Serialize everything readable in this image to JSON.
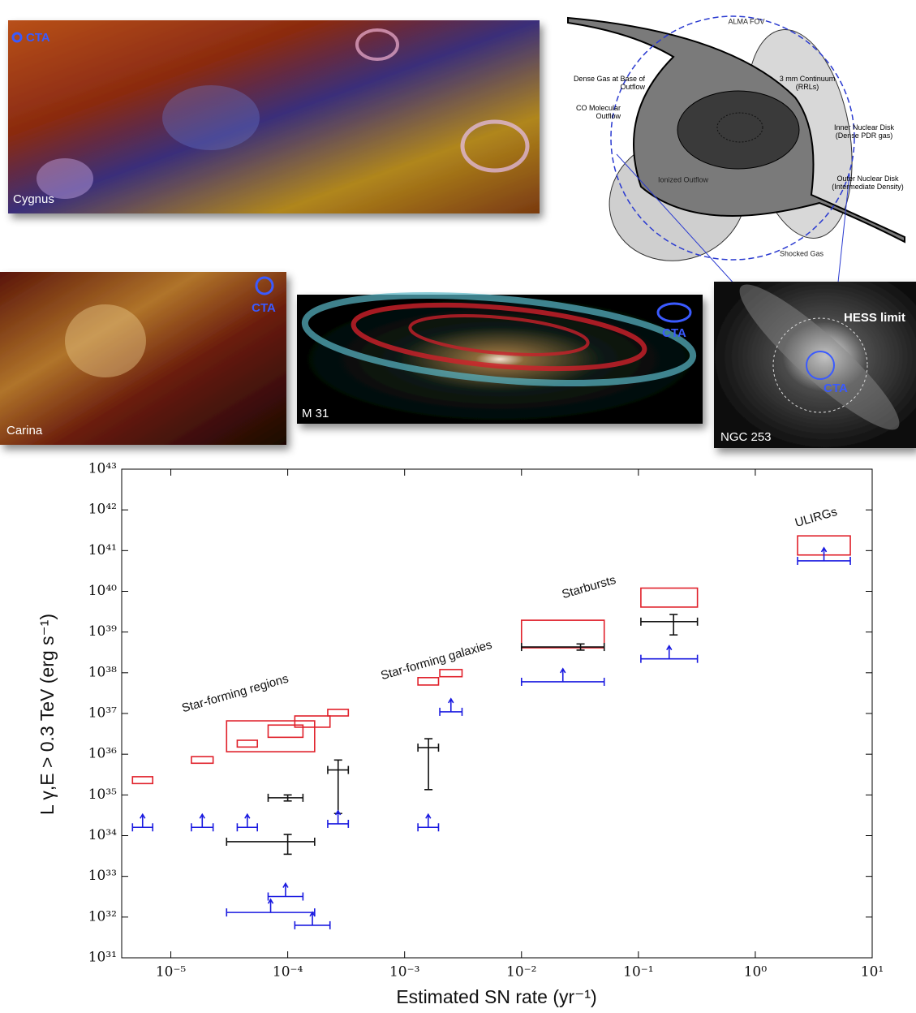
{
  "panels": {
    "cygnus": {
      "label": "Cygnus",
      "beam": "CTA"
    },
    "carina": {
      "label": "Carina",
      "beam": "CTA"
    },
    "m31": {
      "label": "M 31",
      "beam": "CTA"
    },
    "ngc253": {
      "label": "NGC 253",
      "beam": "CTA",
      "limit": "HESS limit"
    },
    "diagram": {
      "fov": "ALMA FOV",
      "dense_gas": "Dense Gas at Base of Outflow",
      "continuum": "3 mm Continuum (RRLs)",
      "co_outflow": "CO Molecular Outflow",
      "inner_disk": "Inner Nuclear Disk (Dense PDR gas)",
      "ionized": "Ionized Outflow",
      "outer_disk": "Outer Nuclear Disk (Intermediate Density)",
      "shocked": "Shocked Gas"
    }
  },
  "chart_data": {
    "type": "errorbar",
    "x_label": "Estimated SN rate (yr⁻¹)",
    "y_label": "L γ,E > 0.3 TeV (erg s⁻¹)",
    "log_x": true,
    "log_y": true,
    "xlim": [
      3.8e-06,
      10
    ],
    "xticks": [
      {
        "value": 1e-05,
        "label": "10⁻⁵"
      },
      {
        "value": 0.0001,
        "label": "10⁻⁴"
      },
      {
        "value": 0.001,
        "label": "10⁻³"
      },
      {
        "value": 0.01,
        "label": "10⁻²"
      },
      {
        "value": 0.1,
        "label": "10⁻¹"
      },
      {
        "value": 1,
        "label": "10⁰"
      },
      {
        "value": 10,
        "label": "10¹"
      }
    ],
    "ylim": [
      1e+31,
      1e+43
    ],
    "yticks": [
      {
        "value": 1e+31,
        "label": "10³¹"
      },
      {
        "value": 1e+32,
        "label": "10³²"
      },
      {
        "value": 1e+33,
        "label": "10³³"
      },
      {
        "value": 1e+34,
        "label": "10³⁴"
      },
      {
        "value": 1e+35,
        "label": "10³⁵"
      },
      {
        "value": 1e+36,
        "label": "10³⁶"
      },
      {
        "value": 1e+37,
        "label": "10³⁷"
      },
      {
        "value": 1e+38,
        "label": "10³⁸"
      },
      {
        "value": 1e+39,
        "label": "10³⁹"
      },
      {
        "value": 1e+40,
        "label": "10⁴⁰"
      },
      {
        "value": 1e+41,
        "label": "10⁴¹"
      },
      {
        "value": 1e+42,
        "label": "10⁴²"
      },
      {
        "value": 1e+43,
        "label": "10⁴³"
      }
    ],
    "annotations": [
      "Star-forming regions",
      "Star-forming galaxies",
      "Starbursts",
      "ULIRGs"
    ],
    "box_color": "#e0202a",
    "point_color": "#111111",
    "limit_color": "#1a1ae0",
    "boxes": [
      {
        "x": [
          4.7e-06,
          7e-06
        ],
        "y": [
          1.9e+35,
          2.8e+35
        ]
      },
      {
        "x": [
          1.5e-05,
          2.3e-05
        ],
        "y": [
          6e+35,
          8.7e+35
        ]
      },
      {
        "x": [
          3e-05,
          0.00017
        ],
        "y": [
          1.15e+36,
          6.6e+36
        ]
      },
      {
        "x": [
          3.7e-05,
          5.5e-05
        ],
        "y": [
          1.5e+36,
          2.2e+36
        ]
      },
      {
        "x": [
          6.8e-05,
          0.000135
        ],
        "y": [
          2.6e+36,
          5.2e+36
        ]
      },
      {
        "x": [
          0.000115,
          0.00023
        ],
        "y": [
          4.6e+36,
          8.7e+36
        ]
      },
      {
        "x": [
          0.00022,
          0.00033
        ],
        "y": [
          8.7e+36,
          1.26e+37
        ]
      },
      {
        "x": [
          0.0013,
          0.00195
        ],
        "y": [
          5e+37,
          7.6e+37
        ]
      },
      {
        "x": [
          0.002,
          0.0031
        ],
        "y": [
          8e+37,
          1.2e+38
        ]
      },
      {
        "x": [
          0.01,
          0.051
        ],
        "y": [
          4.1e+38,
          1.95e+39
        ]
      },
      {
        "x": [
          0.105,
          0.32
        ],
        "y": [
          4.1e+39,
          1.2e+40
        ]
      },
      {
        "x": [
          2.3,
          6.5
        ],
        "y": [
          7.8e+40,
          2.3e+41
        ]
      }
    ],
    "points": [
      {
        "x": 0.0001,
        "x_range": [
          3e-05,
          0.00017
        ],
        "y": 7.1e+33,
        "y_range": [
          3.5e+33,
          1.07e+34
        ]
      },
      {
        "x": 0.0001,
        "x_range": [
          6.8e-05,
          0.000135
        ],
        "y": 8.5e+34,
        "y_range": [
          7.1e+34,
          1e+35
        ]
      },
      {
        "x": 0.00027,
        "x_range": [
          0.00022,
          0.00033
        ],
        "y": 4.1e+35,
        "y_range": [
          3.5e+34,
          7.2e+35
        ]
      },
      {
        "x": 0.0016,
        "x_range": [
          0.0013,
          0.00195
        ],
        "y": 1.45e+36,
        "y_range": [
          1.35e+35,
          2.4e+36
        ]
      },
      {
        "x": 0.032,
        "x_range": [
          0.01,
          0.051
        ],
        "y": 4.3e+38,
        "y_range": [
          3.6e+38,
          5.1e+38
        ]
      },
      {
        "x": 0.2,
        "x_range": [
          0.105,
          0.32
        ],
        "y": 1.8e+39,
        "y_range": [
          8.5e+38,
          2.7e+39
        ]
      }
    ],
    "lower_limits": [
      {
        "x": [
          4.7e-06,
          7e-06
        ],
        "y": 1.6e+34
      },
      {
        "x": [
          1.5e-05,
          2.3e-05
        ],
        "y": 1.6e+34
      },
      {
        "x": [
          3.7e-05,
          5.5e-05
        ],
        "y": 1.6e+34
      },
      {
        "x": [
          0.00022,
          0.00033
        ],
        "y": 1.95e+34
      },
      {
        "x": [
          0.0013,
          0.00195
        ],
        "y": 1.6e+34
      },
      {
        "x": [
          0.002,
          0.0031
        ],
        "y": 1.1e+37
      },
      {
        "x": [
          0.01,
          0.051
        ],
        "y": 6e+37
      },
      {
        "x": [
          0.105,
          0.32
        ],
        "y": 2.2e+38
      },
      {
        "x": [
          2.3,
          6.5
        ],
        "y": 5.6e+40
      },
      {
        "x": [
          6.8e-05,
          0.000135
        ],
        "y": 3.2e+32
      },
      {
        "x": [
          3e-05,
          0.00017
        ],
        "y": 1.3e+32
      },
      {
        "x": [
          0.000115,
          0.00023
        ],
        "y": 6.3e+31
      }
    ]
  }
}
